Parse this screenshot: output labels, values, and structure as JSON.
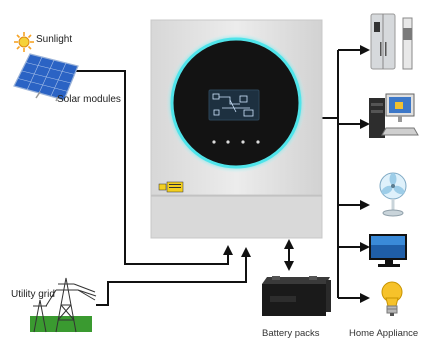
{
  "labels": {
    "sunlight": "Sunlight",
    "solar_modules": "Solar modules",
    "utility_grid": "Utility grid",
    "battery_packs": "Battery packs",
    "home_appliance": "Home Appliance"
  },
  "colors": {
    "wire": "#111111",
    "inverter_body": "#e4e4e4",
    "inverter_bottom": "#d6d6d6",
    "ring_glow": "#3fe0e6",
    "display_screen": "#1d3040",
    "solar_panel": "#2b63c4",
    "sun": "#f7a325",
    "bulb": "#f6c22a",
    "tower_ground": "#3a9a30"
  },
  "icons": [
    "sun-icon",
    "solar-panel-icon",
    "inverter-icon",
    "power-tower-icon",
    "battery-icon",
    "refrigerator-icon",
    "computer-icon",
    "fan-icon",
    "tv-icon",
    "light-bulb-icon"
  ]
}
